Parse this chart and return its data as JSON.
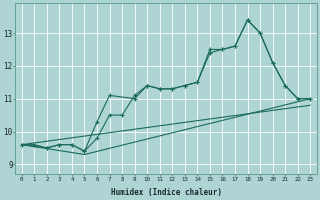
{
  "title": "",
  "xlabel": "Humidex (Indice chaleur)",
  "ylabel": "",
  "bg_color": "#aed4d4",
  "grid_color": "#ffffff",
  "line_color": "#1a6b5a",
  "xlim": [
    -0.5,
    23.5
  ],
  "ylim": [
    8.7,
    13.9
  ],
  "yticks": [
    9,
    10,
    11,
    12,
    13
  ],
  "xticks": [
    0,
    1,
    2,
    3,
    4,
    5,
    6,
    7,
    8,
    9,
    10,
    11,
    12,
    13,
    14,
    15,
    16,
    17,
    18,
    19,
    20,
    21,
    22,
    23
  ],
  "lines": [
    {
      "x": [
        0,
        1,
        2,
        3,
        4,
        5,
        6,
        7,
        8,
        9,
        10,
        11,
        12,
        13,
        14,
        15,
        16,
        17,
        18,
        19,
        20,
        21,
        22,
        23
      ],
      "y": [
        9.6,
        9.6,
        9.5,
        9.6,
        9.6,
        9.4,
        9.8,
        10.5,
        10.5,
        11.1,
        11.4,
        11.3,
        11.3,
        11.4,
        11.5,
        12.5,
        12.5,
        12.6,
        13.4,
        13.0,
        12.1,
        11.4,
        11.0,
        11.0
      ],
      "marker": true
    },
    {
      "x": [
        0,
        2,
        3,
        4,
        5,
        6,
        7,
        9,
        10,
        11,
        12,
        13,
        14,
        15,
        16,
        17,
        18,
        19,
        20,
        21,
        22,
        23
      ],
      "y": [
        9.6,
        9.5,
        9.6,
        9.6,
        9.4,
        10.3,
        11.1,
        11.0,
        11.4,
        11.3,
        11.3,
        11.4,
        11.5,
        12.4,
        12.5,
        12.6,
        13.4,
        13.0,
        12.1,
        11.4,
        11.0,
        11.0
      ],
      "marker": true
    },
    {
      "x": [
        0,
        5,
        23
      ],
      "y": [
        9.6,
        9.3,
        11.0
      ],
      "marker": false
    },
    {
      "x": [
        0,
        23
      ],
      "y": [
        9.6,
        10.8
      ],
      "marker": false
    }
  ]
}
